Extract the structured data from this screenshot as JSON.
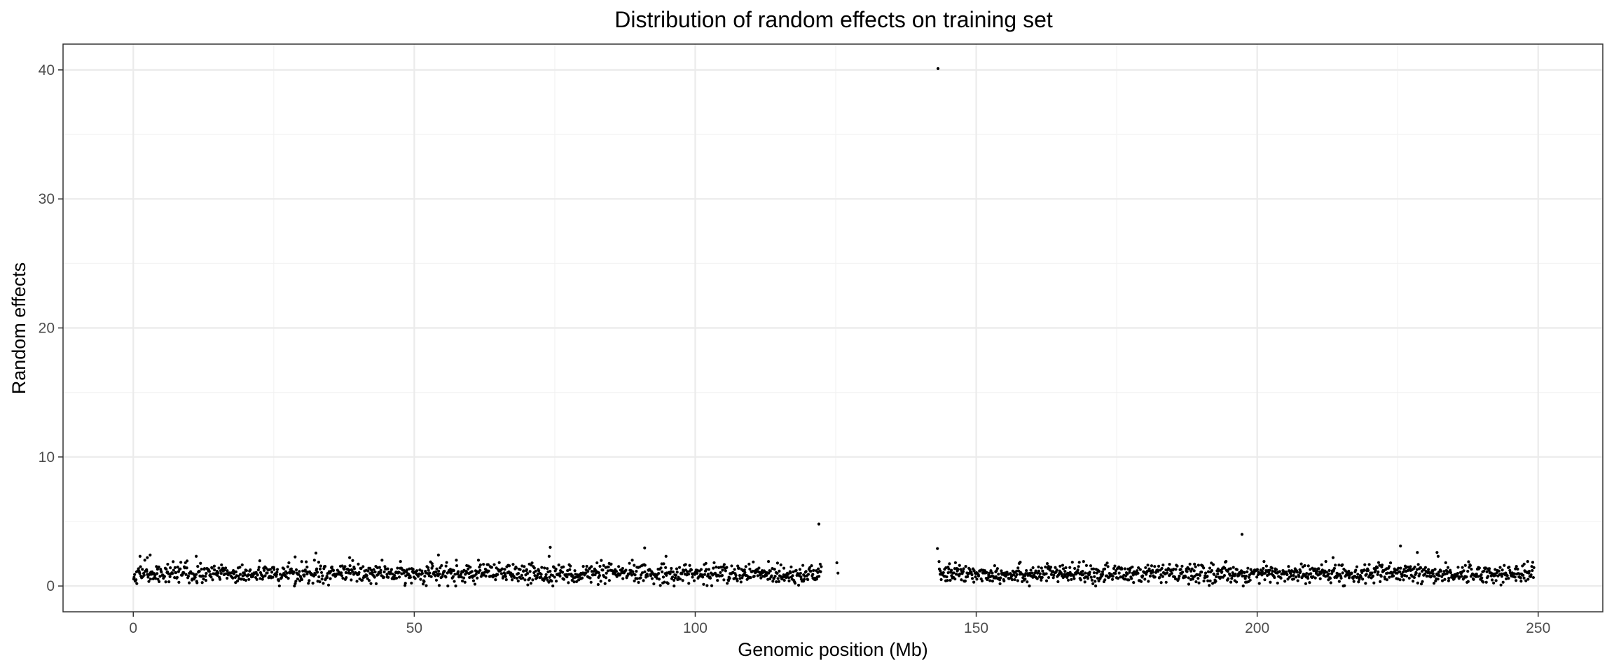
{
  "chart_data": {
    "type": "scatter",
    "title": "Distribution of random effects on training set",
    "xlabel": "Genomic position (Mb)",
    "ylabel": "Random effects",
    "xlim": [
      -12.5,
      261.5
    ],
    "ylim": [
      -2.0,
      42.0
    ],
    "xticks": [
      0,
      50,
      100,
      150,
      200,
      250
    ],
    "yticks": [
      0,
      10,
      20,
      30,
      40
    ],
    "grid": true,
    "legend": "none",
    "point_color": "#000000",
    "notable_points": [
      {
        "x": 143.2,
        "y": 40.1
      },
      {
        "x": 122.0,
        "y": 4.8
      },
      {
        "x": 197.3,
        "y": 4.0
      },
      {
        "x": 225.5,
        "y": 3.1
      },
      {
        "x": 74.2,
        "y": 3.0
      },
      {
        "x": 91.0,
        "y": 2.95
      },
      {
        "x": 143.1,
        "y": 2.9
      },
      {
        "x": 228.5,
        "y": 2.6
      },
      {
        "x": 232.0,
        "y": 2.6
      },
      {
        "x": 232.2,
        "y": 2.3
      },
      {
        "x": 32.5,
        "y": 2.55
      },
      {
        "x": 3.0,
        "y": 2.4
      },
      {
        "x": 2.5,
        "y": 2.2
      },
      {
        "x": 1.2,
        "y": 2.3
      },
      {
        "x": 54.3,
        "y": 2.4
      },
      {
        "x": 11.2,
        "y": 2.3
      },
      {
        "x": 28.8,
        "y": 2.25
      },
      {
        "x": 38.5,
        "y": 2.2
      },
      {
        "x": 74.0,
        "y": 2.3
      },
      {
        "x": 94.8,
        "y": 2.3
      },
      {
        "x": 213.5,
        "y": 2.2
      },
      {
        "x": 125.2,
        "y": 1.8
      },
      {
        "x": 125.4,
        "y": 1.0
      }
    ],
    "segments": [
      {
        "x_start": 0.0,
        "x_end": 122.5,
        "n": 1180,
        "y_center": 0.95,
        "y_spread": 0.38,
        "y_min": 0.0,
        "y_max": 2.0
      },
      {
        "x_start": 143.3,
        "x_end": 249.3,
        "n": 1060,
        "y_center": 0.95,
        "y_spread": 0.36,
        "y_min": 0.0,
        "y_max": 1.9
      }
    ]
  }
}
